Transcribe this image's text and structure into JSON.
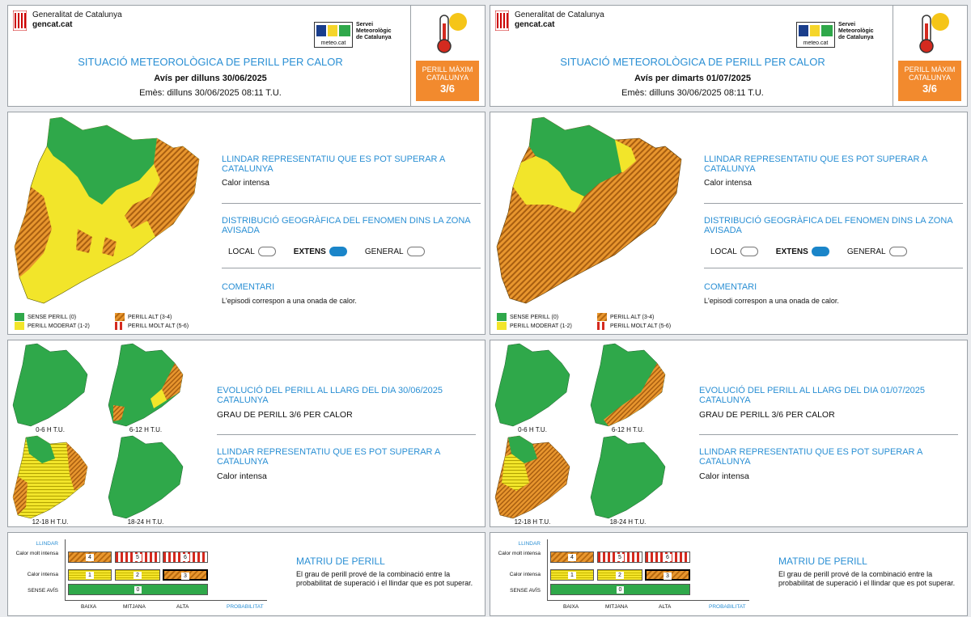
{
  "colors": {
    "green": "#2fa84a",
    "yellow": "#f2e52a",
    "orange": "#e8962e",
    "red": "#d42a1f",
    "title_blue": "#2a8fd4",
    "perill_box": "#f28a2e"
  },
  "header_common": {
    "gen_line1": "Generalitat de Catalunya",
    "gen_line2": "gencat.cat",
    "meteo_caption": "meteo.cat",
    "meteo_line1": "Servei",
    "meteo_line2": "Meteorològic",
    "meteo_line3": "de Catalunya",
    "title": "SITUACIÓ METEOROLÒGICA DE PERILL PER CALOR",
    "perill_label1": "PERILL MÀXIM",
    "perill_label2": "CATALUNYA",
    "perill_level": "3/6"
  },
  "panels": [
    {
      "avis": "Avís per dilluns 30/06/2025",
      "emes": "Emès: dilluns 30/06/2025 08:11 T.U.",
      "evol_heading": "EVOLUCIÓ DEL PERILL AL LLARG DEL DIA 30/06/2025 CATALUNYA"
    },
    {
      "avis": "Avís per dimarts 01/07/2025",
      "emes": "Emès: dilluns 30/06/2025 08:11 T.U.",
      "evol_heading": "EVOLUCIÓ DEL PERILL AL LLARG DEL DIA 01/07/2025 CATALUNYA"
    }
  ],
  "common": {
    "llindar_heading": "LLINDAR REPRESENTATIU QUE ES POT SUPERAR A CATALUNYA",
    "llindar_value": "Calor intensa",
    "dist_heading": "DISTRIBUCIÓ GEOGRÀFICA DEL FENOMEN DINS LA ZONA AVISADA",
    "dist_local": "LOCAL",
    "dist_extens": "EXTENS",
    "dist_general": "GENERAL",
    "dist_selected": "EXTENS",
    "comentari_heading": "COMENTARI",
    "comentari_text": "L'episodi correspon a una onada de calor.",
    "legend": {
      "sense": "SENSE PERILL (0)",
      "moderat": "PERILL MODERAT (1-2)",
      "alt": "PERILL ALT (3-4)",
      "molt_alt": "PERILL MOLT ALT (5-6)"
    },
    "grau": "GRAU DE PERILL 3/6 PER CALOR",
    "periods": [
      "0-6 H T.U.",
      "6-12 H T.U.",
      "12-18 H T.U.",
      "18-24 H T.U."
    ],
    "matrix": {
      "llindar_label": "LLINDAR",
      "row_molt": "Calor molt intensa",
      "row_intensa": "Calor intensa",
      "row_sense": "SENSE AVÍS",
      "col_baixa": "BAIXA",
      "col_mitjana": "MITJANA",
      "col_alta": "ALTA",
      "probabilitat": "PROBABILITAT",
      "cells": [
        "4",
        "5",
        "6",
        "1",
        "2",
        "3",
        "0"
      ],
      "title": "MATRIU DE PERILL",
      "text": "El grau de perill prové de la combinació entre la probabilitat de superació i el llindar que es pot superar."
    }
  }
}
